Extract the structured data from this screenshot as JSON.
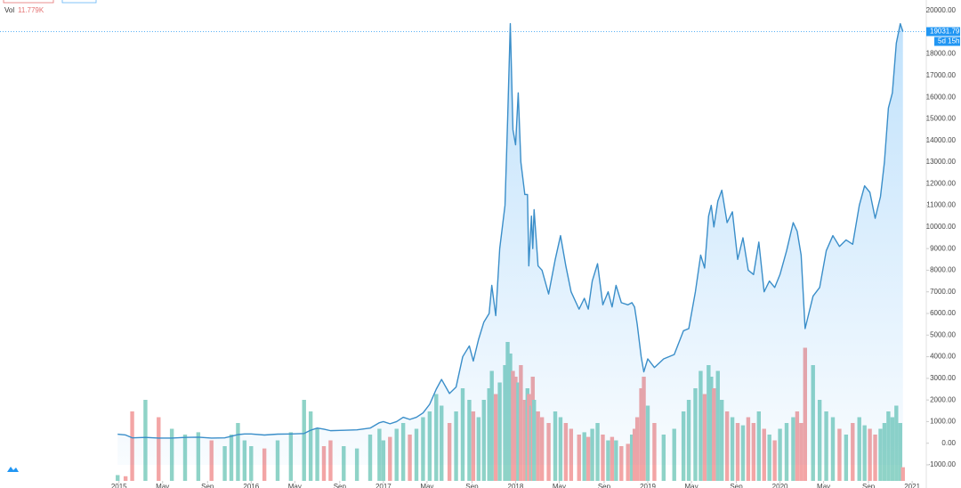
{
  "chart_data": {
    "type": "area",
    "x": [
      2014.99,
      2015.05,
      2015.1,
      2015.2,
      2015.3,
      2015.4,
      2015.5,
      2015.6,
      2015.7,
      2015.8,
      2015.85,
      2015.9,
      2015.95,
      2016.0,
      2016.1,
      2016.2,
      2016.3,
      2016.4,
      2016.45,
      2016.5,
      2016.55,
      2016.6,
      2016.7,
      2016.8,
      2016.9,
      2016.97,
      2017.0,
      2017.05,
      2017.1,
      2017.15,
      2017.2,
      2017.25,
      2017.3,
      2017.35,
      2017.4,
      2017.44,
      2017.5,
      2017.55,
      2017.6,
      2017.65,
      2017.68,
      2017.72,
      2017.76,
      2017.8,
      2017.82,
      2017.85,
      2017.88,
      2017.92,
      2017.94,
      2017.96,
      2017.98,
      2018.0,
      2018.02,
      2018.04,
      2018.07,
      2018.09,
      2018.1,
      2018.12,
      2018.13,
      2018.14,
      2018.17,
      2018.2,
      2018.25,
      2018.3,
      2018.34,
      2018.38,
      2018.42,
      2018.48,
      2018.52,
      2018.55,
      2018.58,
      2018.62,
      2018.66,
      2018.7,
      2018.73,
      2018.76,
      2018.8,
      2018.85,
      2018.88,
      2018.9,
      2018.92,
      2018.95,
      2018.97,
      2019.0,
      2019.05,
      2019.12,
      2019.2,
      2019.27,
      2019.31,
      2019.36,
      2019.4,
      2019.43,
      2019.46,
      2019.48,
      2019.5,
      2019.53,
      2019.56,
      2019.6,
      2019.64,
      2019.68,
      2019.72,
      2019.76,
      2019.8,
      2019.84,
      2019.88,
      2019.92,
      2019.96,
      2020.0,
      2020.05,
      2020.1,
      2020.13,
      2020.16,
      2020.19,
      2020.25,
      2020.3,
      2020.35,
      2020.4,
      2020.45,
      2020.5,
      2020.55,
      2020.6,
      2020.64,
      2020.68,
      2020.72,
      2020.76,
      2020.79,
      2020.82,
      2020.85,
      2020.88,
      2020.91,
      2020.93
    ],
    "series": [
      {
        "color": "#3a8ec9",
        "values": [
          420,
          380,
          250,
          270,
          240,
          240,
          270,
          280,
          240,
          250,
          320,
          400,
          430,
          430,
          380,
          420,
          430,
          450,
          600,
          700,
          650,
          580,
          600,
          620,
          700,
          950,
          1000,
          900,
          1000,
          1200,
          1100,
          1200,
          1400,
          1800,
          2500,
          2950,
          2300,
          2600,
          4000,
          4500,
          3800,
          4800,
          5600,
          6000,
          7300,
          5900,
          9000,
          11000,
          15000,
          19400,
          14500,
          13800,
          16200,
          13000,
          11500,
          11500,
          8200,
          10500,
          9000,
          10800,
          8200,
          8000,
          6900,
          8500,
          9600,
          8200,
          7000,
          6200,
          6700,
          6200,
          7500,
          8300,
          6400,
          7000,
          6300,
          7300,
          6500,
          6400,
          6500,
          6300,
          5500,
          4000,
          3300,
          3900,
          3500,
          3900,
          4100,
          5200,
          5300,
          7000,
          8700,
          8100,
          10500,
          11000,
          10000,
          11200,
          11700,
          10200,
          10700,
          8500,
          9500,
          8000,
          7800,
          9300,
          7000,
          7500,
          7200,
          7800,
          8900,
          10200,
          9800,
          8700,
          5300,
          6800,
          7200,
          8900,
          9600,
          9100,
          9400,
          9200,
          11000,
          11900,
          11600,
          10400,
          11400,
          13000,
          15500,
          16200,
          18500,
          19400,
          19031.79
        ]
      }
    ],
    "volume": {
      "name": "Vol",
      "last_label": "11.779K",
      "up_color": "#8fd3c7",
      "down_color": "#f3a5a5",
      "vlim": [
        0,
        200
      ],
      "values": [
        5,
        4,
        60,
        70,
        55,
        45,
        40,
        42,
        35,
        30,
        40,
        50,
        35,
        30,
        28,
        35,
        42,
        70,
        60,
        45,
        30,
        35,
        30,
        28,
        40,
        45,
        35,
        38,
        45,
        50,
        40,
        45,
        55,
        60,
        75,
        65,
        50,
        60,
        80,
        70,
        60,
        55,
        70,
        80,
        95,
        75,
        85,
        100,
        120,
        110,
        95,
        90,
        85,
        100,
        70,
        80,
        75,
        65,
        90,
        70,
        60,
        55,
        50,
        60,
        55,
        50,
        45,
        40,
        42,
        38,
        45,
        50,
        40,
        35,
        38,
        35,
        30,
        32,
        40,
        45,
        55,
        80,
        90,
        65,
        50,
        40,
        45,
        60,
        70,
        80,
        95,
        75,
        100,
        90,
        80,
        95,
        70,
        60,
        55,
        50,
        48,
        55,
        50,
        60,
        45,
        40,
        35,
        45,
        50,
        55,
        60,
        50,
        115,
        100,
        70,
        60,
        55,
        45,
        40,
        50,
        55,
        48,
        45,
        40,
        45,
        50,
        60,
        55,
        65,
        50,
        11.779
      ]
    },
    "price_line": {
      "value": 19031.79,
      "label": "19031.79",
      "countdown": "5d 15h",
      "color": "#2196f3"
    },
    "xlim": [
      2014.1,
      2021.1
    ],
    "xticks": [
      2015,
      {
        "value": 2015.33,
        "label": "May"
      },
      {
        "value": 2015.67,
        "label": "Sep"
      },
      2016,
      {
        "value": 2016.33,
        "label": "May"
      },
      {
        "value": 2016.67,
        "label": "Sep"
      },
      2017,
      {
        "value": 2017.33,
        "label": "May"
      },
      {
        "value": 2017.67,
        "label": "Sep"
      },
      2018,
      {
        "value": 2018.33,
        "label": "May"
      },
      {
        "value": 2018.67,
        "label": "Sep"
      },
      2019,
      {
        "value": 2019.33,
        "label": "May"
      },
      {
        "value": 2019.67,
        "label": "Sep"
      },
      2020,
      {
        "value": 2020.33,
        "label": "May"
      },
      {
        "value": 2020.67,
        "label": "Sep"
      },
      2021
    ],
    "ylim": [
      -1000,
      20000
    ],
    "yticks": [
      {
        "value": 20000,
        "label": "20000.00"
      },
      {
        "value": 19000,
        "label": "19000.00"
      },
      {
        "value": 18000,
        "label": "18000.00"
      },
      {
        "value": 17000,
        "label": "17000.00"
      },
      {
        "value": 16000,
        "label": "16000.00"
      },
      {
        "value": 15000,
        "label": "15000.00"
      },
      {
        "value": 14000,
        "label": "14000.00"
      },
      {
        "value": 13000,
        "label": "13000.00"
      },
      {
        "value": 12000,
        "label": "12000.00"
      },
      {
        "value": 11000,
        "label": "11000.00"
      },
      {
        "value": 10000,
        "label": "10000.00"
      },
      {
        "value": 9000,
        "label": "9000.00"
      },
      {
        "value": 8000,
        "label": "8000.00"
      },
      {
        "value": 7000,
        "label": "7000.00"
      },
      {
        "value": 6000,
        "label": "6000.00"
      },
      {
        "value": 5000,
        "label": "5000.00"
      },
      {
        "value": 4000,
        "label": "4000.00"
      },
      {
        "value": 3000,
        "label": "3000.00"
      },
      {
        "value": 2000,
        "label": "2000.00"
      },
      {
        "value": 1000,
        "label": "1000.00"
      },
      {
        "value": 0,
        "label": "0.00"
      },
      {
        "value": -1000,
        "label": "-1000.00"
      }
    ],
    "grid": false
  }
}
